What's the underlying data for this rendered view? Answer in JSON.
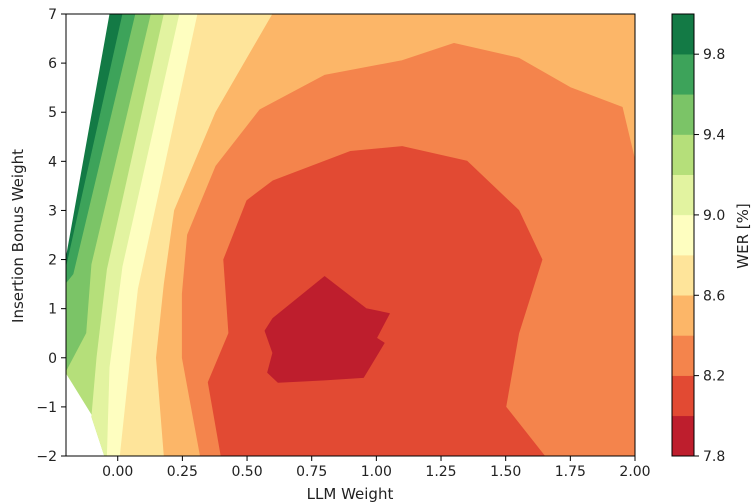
{
  "chart_data": {
    "type": "contour",
    "xlabel": "LLM Weight",
    "ylabel": "Insertion Bonus Weight",
    "colorbar_label": "WER [%]",
    "xlim": [
      -0.2,
      2.0
    ],
    "ylim": [
      -2,
      7
    ],
    "x_ticks": [
      "0.00",
      "0.25",
      "0.50",
      "0.75",
      "1.00",
      "1.25",
      "1.50",
      "1.75",
      "2.00"
    ],
    "y_ticks": [
      "−2",
      "−1",
      "0",
      "1",
      "2",
      "3",
      "4",
      "5",
      "6",
      "7"
    ],
    "colorbar_ticks": [
      "7.8",
      "8.2",
      "8.6",
      "9.0",
      "9.4",
      "9.8"
    ],
    "levels": [
      {
        "range": [
          7.8,
          8.0
        ],
        "color": "#be1e2d"
      },
      {
        "range": [
          8.0,
          8.2
        ],
        "color": "#e24a33"
      },
      {
        "range": [
          8.2,
          8.4
        ],
        "color": "#f4844c"
      },
      {
        "range": [
          8.4,
          8.6
        ],
        "color": "#fcb668"
      },
      {
        "range": [
          8.6,
          8.8
        ],
        "color": "#fee49a"
      },
      {
        "range": [
          8.8,
          9.0
        ],
        "color": "#fefec0"
      },
      {
        "range": [
          9.0,
          9.2
        ],
        "color": "#e2f3a0"
      },
      {
        "range": [
          9.2,
          9.4
        ],
        "color": "#b5df7a"
      },
      {
        "range": [
          9.4,
          9.6
        ],
        "color": "#7bc467"
      },
      {
        "range": [
          9.6,
          9.8
        ],
        "color": "#3da35a"
      },
      {
        "range": [
          9.8,
          10.0
        ],
        "color": "#137a45"
      }
    ],
    "minimum_region": {
      "x_center": 0.75,
      "y_center": 0.5
    }
  }
}
